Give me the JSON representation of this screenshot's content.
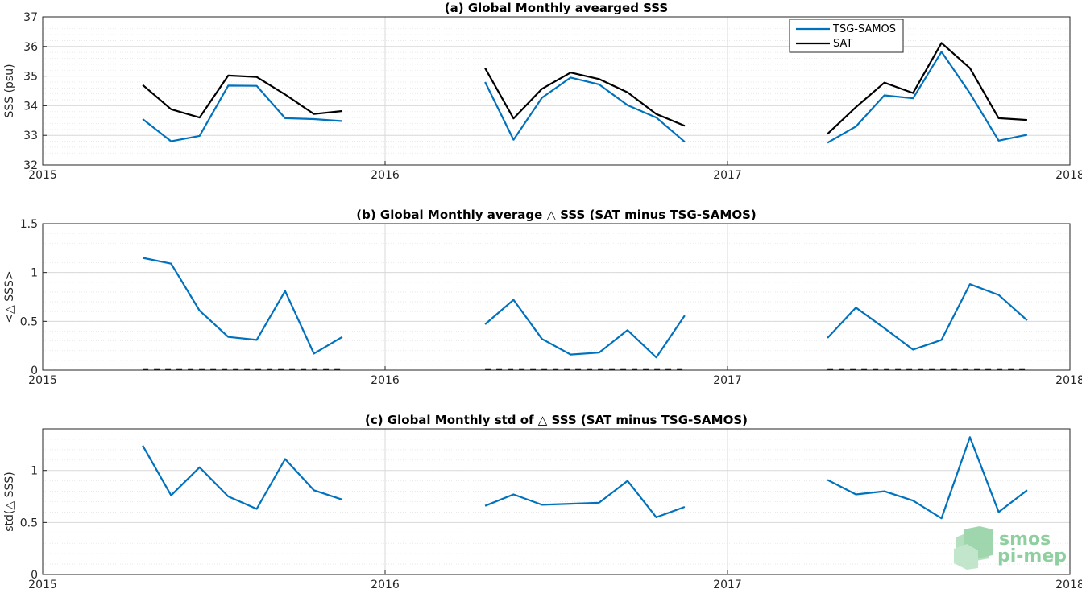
{
  "colors": {
    "tsg": "#0072bd",
    "sat": "#000000",
    "grid_major": "#d9d9d9",
    "grid_minor": "#e6e6e6",
    "logo": "#8fcf9f"
  },
  "logo": {
    "line1": "smos",
    "line2": "pi-mep"
  },
  "chart_data": [
    {
      "type": "line",
      "title": "(a) Global Monthly avearged SSS",
      "xlabel": "",
      "ylabel": "SSS (psu)",
      "xlim": [
        2015,
        2018
      ],
      "ylim": [
        32,
        37
      ],
      "xticks": [
        "2015",
        "2016",
        "2017",
        "2018"
      ],
      "yticks": [
        "32",
        "33",
        "34",
        "35",
        "36",
        "37"
      ],
      "ytick_values": [
        32,
        33,
        34,
        35,
        36,
        37
      ],
      "grid": true,
      "legend": "top-center",
      "series": [
        {
          "name": "TSG-SAMOS",
          "segments": [
            {
              "x": [
                2015.292,
                2015.375,
                2015.458,
                2015.542,
                2015.625,
                2015.708,
                2015.792,
                2015.875
              ],
              "y": [
                33.55,
                32.8,
                32.98,
                34.68,
                34.67,
                33.58,
                33.55,
                33.48
              ]
            },
            {
              "x": [
                2016.292,
                2016.375,
                2016.458,
                2016.542,
                2016.625,
                2016.708,
                2016.792,
                2016.875
              ],
              "y": [
                34.8,
                32.85,
                34.27,
                34.95,
                34.72,
                34.02,
                33.6,
                32.78
              ]
            },
            {
              "x": [
                2017.292,
                2017.375,
                2017.458,
                2017.542,
                2017.625,
                2017.708,
                2017.792,
                2017.875
              ],
              "y": [
                32.75,
                33.3,
                34.35,
                34.25,
                35.82,
                34.42,
                32.82,
                33.02
              ]
            }
          ]
        },
        {
          "name": "SAT",
          "segments": [
            {
              "x": [
                2015.292,
                2015.375,
                2015.458,
                2015.542,
                2015.625,
                2015.708,
                2015.792,
                2015.875
              ],
              "y": [
                34.7,
                33.88,
                33.6,
                35.02,
                34.97,
                34.38,
                33.72,
                33.82
              ]
            },
            {
              "x": [
                2016.292,
                2016.375,
                2016.458,
                2016.542,
                2016.625,
                2016.708,
                2016.792,
                2016.875
              ],
              "y": [
                35.27,
                33.57,
                34.57,
                35.12,
                34.9,
                34.45,
                33.72,
                33.32
              ]
            },
            {
              "x": [
                2017.292,
                2017.375,
                2017.458,
                2017.542,
                2017.625,
                2017.708,
                2017.792,
                2017.875
              ],
              "y": [
                33.05,
                33.95,
                34.78,
                34.43,
                36.12,
                35.27,
                33.58,
                33.52
              ]
            }
          ]
        }
      ]
    },
    {
      "type": "line",
      "title": "(b) Global Monthly average △ SSS (SAT minus TSG-SAMOS)",
      "xlabel": "",
      "ylabel": "<△ SSS>",
      "xlim": [
        2015,
        2018
      ],
      "ylim": [
        0,
        1.5
      ],
      "xticks": [
        "2015",
        "2016",
        "2017",
        "2018"
      ],
      "yticks": [
        "0",
        "0.5",
        "1",
        "1.5"
      ],
      "ytick_values": [
        0,
        0.5,
        1,
        1.5
      ],
      "grid": true,
      "zero_line": {
        "style": "dashed",
        "segments": [
          [
            2015.292,
            2015.875
          ],
          [
            2016.292,
            2016.875
          ],
          [
            2017.292,
            2017.875
          ]
        ]
      },
      "series": [
        {
          "name": "",
          "segments": [
            {
              "x": [
                2015.292,
                2015.375,
                2015.458,
                2015.542,
                2015.625,
                2015.708,
                2015.792,
                2015.875
              ],
              "y": [
                1.15,
                1.09,
                0.61,
                0.34,
                0.31,
                0.81,
                0.17,
                0.34
              ]
            },
            {
              "x": [
                2016.292,
                2016.375,
                2016.458,
                2016.542,
                2016.625,
                2016.708,
                2016.792,
                2016.875
              ],
              "y": [
                0.47,
                0.72,
                0.32,
                0.16,
                0.18,
                0.41,
                0.13,
                0.56
              ]
            },
            {
              "x": [
                2017.292,
                2017.375,
                2017.458,
                2017.542,
                2017.625,
                2017.708,
                2017.792,
                2017.875
              ],
              "y": [
                0.33,
                0.64,
                0.43,
                0.21,
                0.31,
                0.88,
                0.77,
                0.51
              ]
            }
          ]
        }
      ]
    },
    {
      "type": "line",
      "title": "(c) Global Monthly std of △ SSS (SAT minus TSG-SAMOS)",
      "xlabel": "",
      "ylabel": "std(△ SSS)",
      "xlim": [
        2015,
        2018
      ],
      "ylim": [
        0,
        1.4
      ],
      "xticks": [
        "2015",
        "2016",
        "2017",
        "2018"
      ],
      "yticks": [
        "0",
        "0.5",
        "1"
      ],
      "ytick_values": [
        0,
        0.5,
        1
      ],
      "grid": true,
      "series": [
        {
          "name": "",
          "segments": [
            {
              "x": [
                2015.292,
                2015.375,
                2015.458,
                2015.542,
                2015.625,
                2015.708,
                2015.792,
                2015.875
              ],
              "y": [
                1.24,
                0.76,
                1.03,
                0.75,
                0.63,
                1.11,
                0.81,
                0.72
              ]
            },
            {
              "x": [
                2016.292,
                2016.375,
                2016.458,
                2016.542,
                2016.625,
                2016.708,
                2016.792,
                2016.875
              ],
              "y": [
                0.66,
                0.77,
                0.67,
                0.68,
                0.69,
                0.9,
                0.55,
                0.65
              ]
            },
            {
              "x": [
                2017.292,
                2017.375,
                2017.458,
                2017.542,
                2017.625,
                2017.708,
                2017.792,
                2017.875
              ],
              "y": [
                0.91,
                0.77,
                0.8,
                0.71,
                0.54,
                1.32,
                0.6,
                0.81
              ]
            }
          ]
        }
      ]
    }
  ]
}
